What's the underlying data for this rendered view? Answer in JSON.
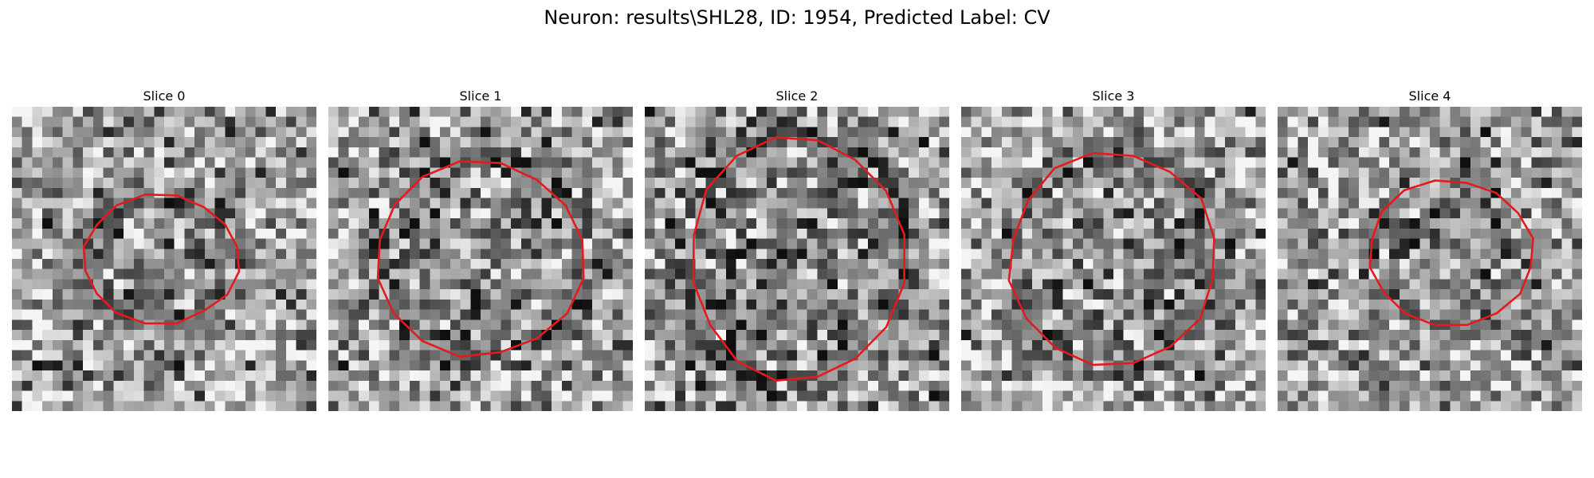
{
  "title": "Neuron: results\\SHL28, ID: 1954, Predicted Label: CV",
  "outline_color": "#e41a1c",
  "slices": [
    {
      "label": "Slice 0",
      "center": [
        0.49,
        0.5
      ],
      "radii": [
        0.26,
        0.21
      ],
      "contrast": 0.45
    },
    {
      "label": "Slice 1",
      "center": [
        0.5,
        0.5
      ],
      "radii": [
        0.34,
        0.32
      ],
      "contrast": 0.55
    },
    {
      "label": "Slice 2",
      "center": [
        0.5,
        0.5
      ],
      "radii": [
        0.35,
        0.4
      ],
      "contrast": 0.55
    },
    {
      "label": "Slice 3",
      "center": [
        0.5,
        0.5
      ],
      "radii": [
        0.34,
        0.35
      ],
      "contrast": 0.5
    },
    {
      "label": "Slice 4",
      "center": [
        0.57,
        0.48
      ],
      "radii": [
        0.27,
        0.24
      ],
      "contrast": 0.45
    }
  ]
}
